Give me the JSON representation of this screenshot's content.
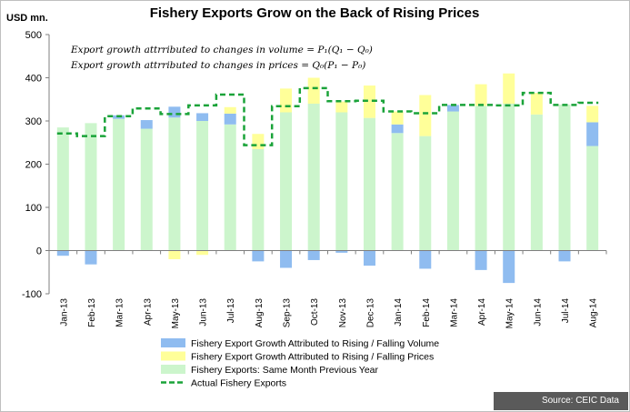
{
  "chart_data": {
    "type": "bar",
    "title": "Fishery Exports Grow on the Back of Rising Prices",
    "ylabel": "USD mn.",
    "ylim": [
      -100,
      500
    ],
    "yticks": [
      -100,
      0,
      100,
      200,
      300,
      400,
      500
    ],
    "categories": [
      "Jan-13",
      "Feb-13",
      "Mar-13",
      "Apr-13",
      "May-13",
      "Jun-13",
      "Jul-13",
      "Aug-13",
      "Sep-13",
      "Oct-13",
      "Nov-13",
      "Dec-13",
      "Jan-14",
      "Feb-14",
      "Mar-14",
      "Apr-14",
      "May-14",
      "Jun-14",
      "Jul-14",
      "Aug-14"
    ],
    "series": [
      {
        "name": "Fishery Export Growth Attributed to Rising / Falling Volume",
        "color": "#8fbcf0",
        "values": [
          -12,
          -32,
          8,
          20,
          25,
          18,
          25,
          -25,
          -40,
          -22,
          -5,
          -35,
          20,
          -42,
          15,
          -45,
          -75,
          0,
          -25,
          55
        ]
      },
      {
        "name": "Fishery Export Growth Attributed to Rising / Falling Prices",
        "color": "#ffff99",
        "values": [
          0,
          0,
          0,
          0,
          -20,
          -10,
          15,
          35,
          55,
          60,
          25,
          75,
          30,
          95,
          0,
          50,
          70,
          50,
          0,
          38
        ]
      },
      {
        "name": "Fishery Exports: Same Month Previous Year",
        "color": "#ccf5cc",
        "values": [
          285,
          295,
          305,
          282,
          308,
          300,
          292,
          235,
          320,
          340,
          320,
          307,
          272,
          265,
          322,
          335,
          340,
          315,
          338,
          242
        ]
      },
      {
        "name": "Actual Fishery Exports",
        "color": "#1aa339",
        "style": "dashed-step",
        "values": [
          271,
          265,
          311,
          329,
          316,
          336,
          361,
          244,
          334,
          376,
          346,
          347,
          322,
          318,
          337,
          337,
          336,
          365,
          337,
          342
        ]
      }
    ],
    "annotations": [
      "Export growth attrributed to changes in volume = P₁(Q₁ − Q₀)",
      "Export growth attrributed to changes in prices = Q₀(P₁ − P₀)"
    ],
    "grid": false,
    "legend_position": "bottom"
  },
  "source": "Source: CEIC Data"
}
